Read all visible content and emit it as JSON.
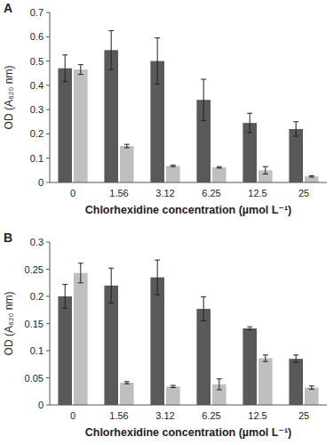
{
  "chart_data": [
    {
      "type": "bar",
      "title": "A",
      "x_label": "Chlorhexidine concentration (µmol L⁻¹)",
      "y_label": "OD (A₆₂₀ nm)",
      "categories": [
        "0",
        "1.56",
        "3.12",
        "6.25",
        "12.5",
        "25"
      ],
      "series": [
        {
          "color": "#595959",
          "values": [
            0.47,
            0.545,
            0.5,
            0.34,
            0.245,
            0.22
          ],
          "errors": [
            0.055,
            0.08,
            0.095,
            0.085,
            0.04,
            0.03
          ]
        },
        {
          "color": "#bfbfbf",
          "values": [
            0.465,
            0.15,
            0.068,
            0.062,
            0.05,
            0.025
          ],
          "errors": [
            0.02,
            0.007,
            0.003,
            0.003,
            0.015,
            0.003
          ]
        }
      ],
      "ylim": [
        0,
        0.7
      ],
      "yticks": [
        0,
        0.1,
        0.2,
        0.3,
        0.4,
        0.5,
        0.6,
        0.7
      ],
      "grid": false
    },
    {
      "type": "bar",
      "title": "B",
      "x_label": "Chlorhexidine concentration (µmol L⁻¹)",
      "y_label": "OD (A₆₂₀ nm)",
      "categories": [
        "0",
        "1.56",
        "3.12",
        "6.25",
        "12.5",
        "25"
      ],
      "series": [
        {
          "color": "#595959",
          "values": [
            0.2,
            0.22,
            0.235,
            0.177,
            0.141,
            0.085
          ],
          "errors": [
            0.022,
            0.032,
            0.032,
            0.022,
            0.003,
            0.007
          ]
        },
        {
          "color": "#bfbfbf",
          "values": [
            0.243,
            0.041,
            0.034,
            0.038,
            0.086,
            0.032
          ],
          "errors": [
            0.018,
            0.002,
            0.002,
            0.01,
            0.006,
            0.003
          ]
        }
      ],
      "ylim": [
        0,
        0.3
      ],
      "yticks": [
        0,
        0.05,
        0.1,
        0.15,
        0.2,
        0.25,
        0.3
      ],
      "grid": false
    }
  ]
}
